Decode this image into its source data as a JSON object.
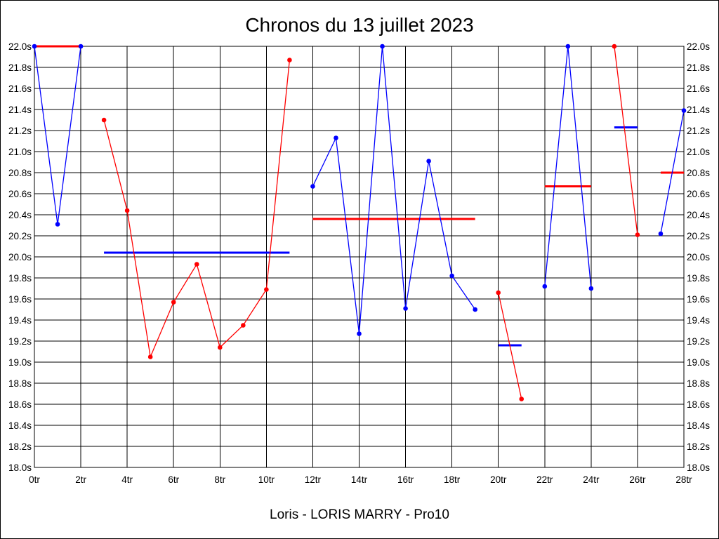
{
  "chart_data": {
    "type": "line",
    "title": "Chronos du 13 juillet 2023",
    "caption": "Loris - LORIS MARRY - Pro10",
    "x_range": [
      0,
      28
    ],
    "y_range": [
      18.0,
      22.0
    ],
    "x_ticks": [
      "0tr",
      "2tr",
      "4tr",
      "6tr",
      "8tr",
      "10tr",
      "12tr",
      "14tr",
      "16tr",
      "18tr",
      "20tr",
      "22tr",
      "24tr",
      "26tr",
      "28tr"
    ],
    "x_tick_values": [
      0,
      2,
      4,
      6,
      8,
      10,
      12,
      14,
      16,
      18,
      20,
      22,
      24,
      26,
      28
    ],
    "y_ticks": [
      "18.0s",
      "18.2s",
      "18.4s",
      "18.6s",
      "18.8s",
      "19.0s",
      "19.2s",
      "19.4s",
      "19.6s",
      "19.8s",
      "20.0s",
      "20.2s",
      "20.4s",
      "20.6s",
      "20.8s",
      "21.0s",
      "21.2s",
      "21.4s",
      "21.6s",
      "21.8s",
      "22.0s"
    ],
    "y_tick_values": [
      18.0,
      18.2,
      18.4,
      18.6,
      18.8,
      19.0,
      19.2,
      19.4,
      19.6,
      19.8,
      20.0,
      20.2,
      20.4,
      20.6,
      20.8,
      21.0,
      21.2,
      21.4,
      21.6,
      21.8,
      22.0
    ],
    "grid": true,
    "colors": {
      "blue": "#0000ff",
      "red": "#ff0000",
      "grid": "#000000"
    },
    "segments": [
      {
        "color": "#0000ff",
        "x": [
          0,
          1,
          2
        ],
        "y": [
          22.0,
          20.31,
          22.0
        ]
      },
      {
        "color": "#ff0000",
        "x": [
          3,
          4,
          5,
          6,
          7,
          8,
          9,
          10,
          11
        ],
        "y": [
          21.3,
          20.44,
          19.05,
          19.57,
          19.93,
          19.14,
          19.35,
          19.69,
          21.87
        ]
      },
      {
        "color": "#0000ff",
        "x": [
          12,
          13,
          14,
          15,
          16,
          17,
          18,
          19
        ],
        "y": [
          20.67,
          21.13,
          19.27,
          22.0,
          19.51,
          20.91,
          19.82,
          19.5
        ]
      },
      {
        "color": "#ff0000",
        "x": [
          20,
          21
        ],
        "y": [
          19.66,
          18.65
        ]
      },
      {
        "color": "#0000ff",
        "x": [
          22,
          23,
          24
        ],
        "y": [
          19.72,
          22.0,
          19.7
        ]
      },
      {
        "color": "#ff0000",
        "x": [
          25,
          26
        ],
        "y": [
          22.0,
          20.21
        ]
      },
      {
        "color": "#0000ff",
        "x": [
          27,
          28
        ],
        "y": [
          20.22,
          21.39
        ]
      }
    ],
    "averages": [
      {
        "color": "#ff0000",
        "x": [
          0,
          2
        ],
        "y": 22.0
      },
      {
        "color": "#0000ff",
        "x": [
          3,
          11
        ],
        "y": 20.04
      },
      {
        "color": "#ff0000",
        "x": [
          12,
          19
        ],
        "y": 20.36
      },
      {
        "color": "#0000ff",
        "x": [
          20,
          21
        ],
        "y": 19.16
      },
      {
        "color": "#ff0000",
        "x": [
          22,
          24
        ],
        "y": 20.67
      },
      {
        "color": "#0000ff",
        "x": [
          25,
          26
        ],
        "y": 21.23
      },
      {
        "color": "#ff0000",
        "x": [
          27,
          28
        ],
        "y": 20.8
      }
    ]
  }
}
